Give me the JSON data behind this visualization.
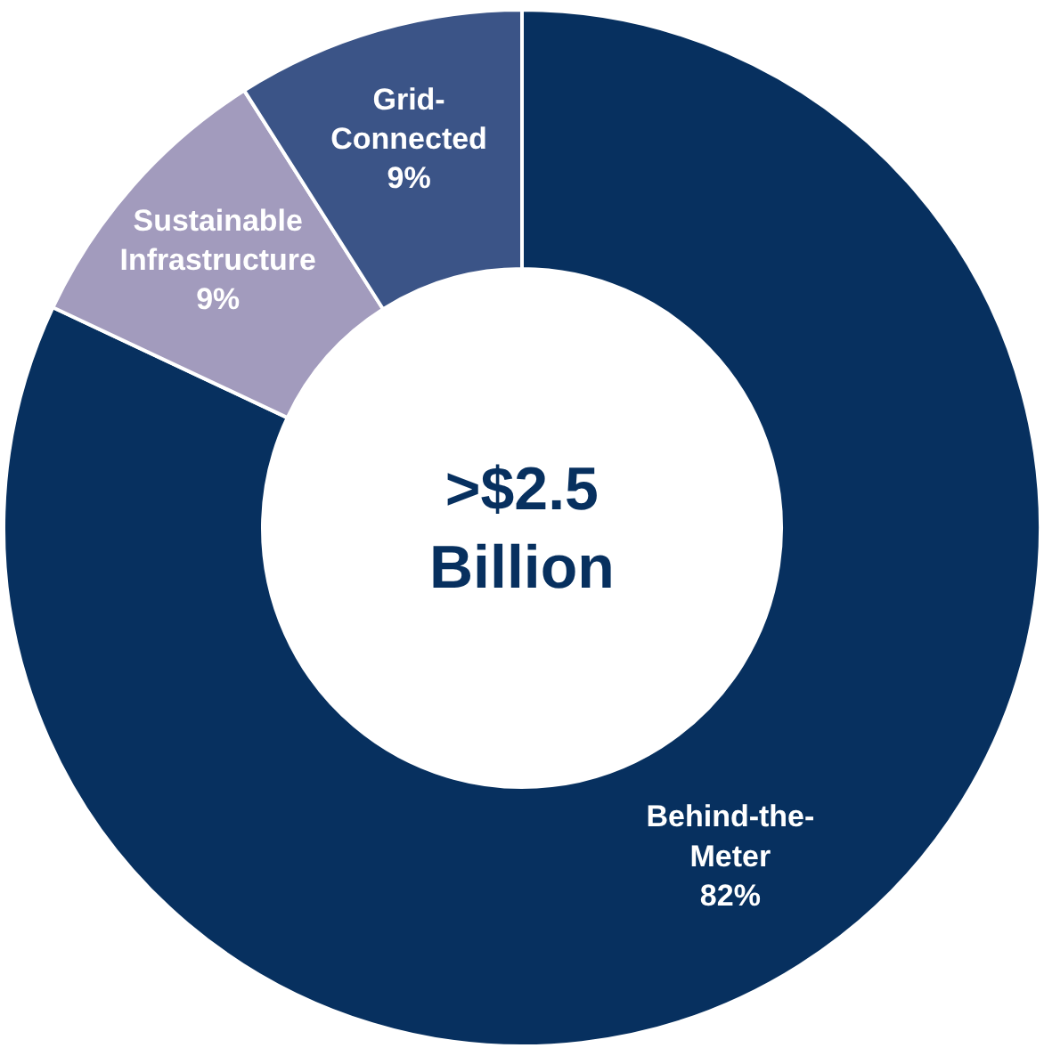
{
  "chart_data": {
    "type": "donut",
    "categories": [
      "Behind-the-Meter",
      "Sustainable Infrastructure",
      "Grid-Connected"
    ],
    "values": [
      82,
      9,
      9
    ],
    "value_labels": [
      "82%",
      "9%",
      "9%"
    ],
    "colors": [
      "#07305f",
      "#a29bbd",
      "#3b5487"
    ],
    "annotations": [
      ">$2.5 Billion"
    ],
    "legend": false
  }
}
